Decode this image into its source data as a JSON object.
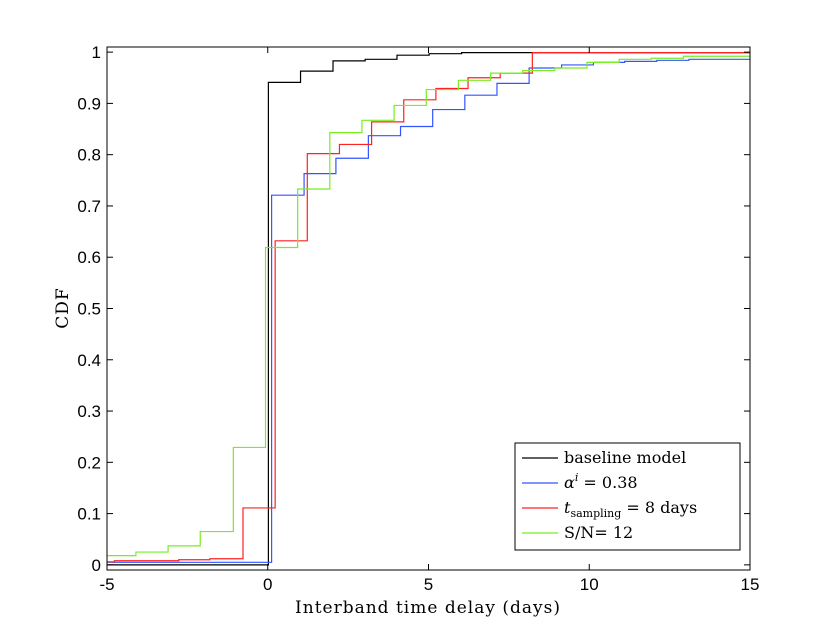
{
  "chart_data": {
    "type": "line",
    "step": true,
    "title": "",
    "xlabel": "Interband time delay (days)",
    "ylabel": "CDF",
    "xlim": [
      -5,
      15
    ],
    "ylim": [
      -0.01,
      1.01
    ],
    "xticks": [
      "-5",
      "0",
      "5",
      "10",
      "15"
    ],
    "xtick_values": [
      -5,
      0,
      5,
      10,
      15
    ],
    "yticks": [
      "0",
      "0.1",
      "0.2",
      "0.3",
      "0.4",
      "0.5",
      "0.6",
      "0.7",
      "0.8",
      "0.9",
      "1"
    ],
    "ytick_values": [
      0,
      0.1,
      0.2,
      0.3,
      0.4,
      0.5,
      0.6,
      0.7,
      0.8,
      0.9,
      1
    ],
    "grid": false,
    "legend_placement": "bottom-right",
    "series": [
      {
        "name": "baseline model",
        "legend": {
          "main": "baseline model"
        },
        "color": "#000000",
        "x": [
          -5,
          0.02,
          1.02,
          2.03,
          3.03,
          4.02,
          5.02,
          6.03,
          15
        ],
        "y": [
          0.0,
          0.941,
          0.963,
          0.983,
          0.986,
          0.994,
          0.997,
          0.999,
          0.999
        ]
      },
      {
        "name": "α^i = 0.38",
        "legend": {
          "main": "α",
          "sup": "i",
          "rest": " = 0.38"
        },
        "color": "#3355ff",
        "x": [
          -5,
          0.12,
          1.13,
          2.12,
          3.13,
          4.13,
          5.13,
          6.13,
          7.13,
          8.13,
          9.14,
          10.13,
          11.1,
          12.1,
          13.1,
          15
        ],
        "y": [
          0.005,
          0.721,
          0.763,
          0.793,
          0.837,
          0.855,
          0.888,
          0.916,
          0.939,
          0.969,
          0.975,
          0.98,
          0.982,
          0.984,
          0.986,
          0.986
        ]
      },
      {
        "name": "t_sampling = 8 days",
        "legend": {
          "main": "t",
          "sub": "sampling",
          "rest": " = 8 days"
        },
        "color": "#ff2222",
        "x": [
          -5,
          -4.77,
          -2.77,
          -1.8,
          -0.77,
          0.23,
          1.23,
          2.23,
          3.23,
          4.23,
          5.23,
          6.23,
          7.23,
          8.23,
          15
        ],
        "y": [
          0.006,
          0.008,
          0.01,
          0.012,
          0.111,
          0.632,
          0.802,
          0.82,
          0.864,
          0.907,
          0.929,
          0.95,
          0.959,
          0.999,
          0.999
        ]
      },
      {
        "name": "S/N= 12",
        "legend": {
          "main": "S/N= 12"
        },
        "color": "#77ee22",
        "x": [
          -5,
          -4.1,
          -3.1,
          -2.1,
          -1.07,
          -0.07,
          0.93,
          1.93,
          2.93,
          3.93,
          4.93,
          5.93,
          6.93,
          7.93,
          8.93,
          9.93,
          10.93,
          11.93,
          12.93,
          15
        ],
        "y": [
          0.018,
          0.025,
          0.037,
          0.065,
          0.229,
          0.619,
          0.733,
          0.843,
          0.867,
          0.896,
          0.927,
          0.945,
          0.959,
          0.964,
          0.969,
          0.98,
          0.986,
          0.988,
          0.992,
          0.992
        ]
      }
    ]
  }
}
